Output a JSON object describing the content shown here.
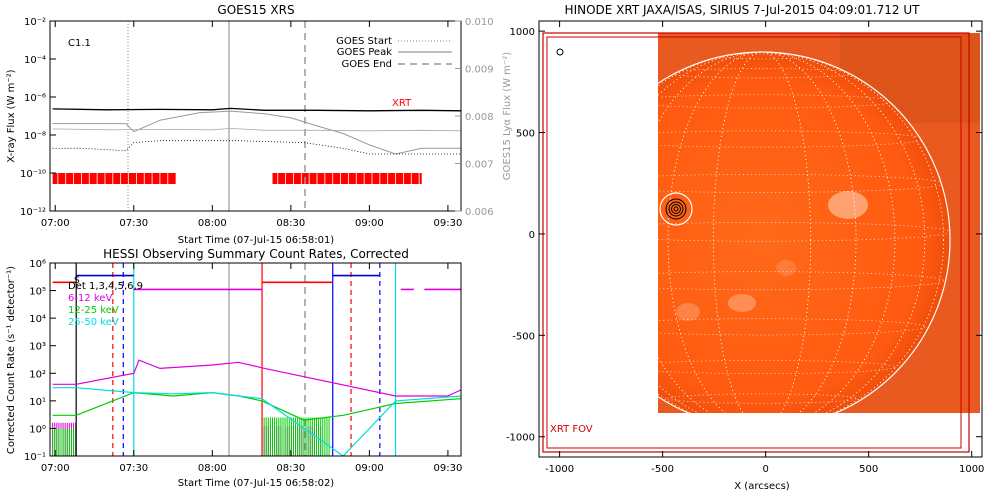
{
  "goes_panel": {
    "title": "GOES15 XRS",
    "class_label": "C1.1",
    "left_axis_label": "X-ray Flux (W m⁻²)",
    "right_axis_label": "GOES15 Lyα Flux (W m⁻²)",
    "xlabel": "Start Time (07-Jul-15 06:58:01)",
    "xrt_tag": "XRT",
    "legend": [
      "GOES Start",
      "GOES Peak",
      "GOES End"
    ],
    "colors": {
      "primary": "#000000",
      "secondary": "#999999",
      "coverage": "#ff0000"
    }
  },
  "hessi_panel": {
    "title": "HESSI Observing Summary Count Rates, Corrected",
    "ylabel": "Corrected Count Rate (s⁻¹ detector⁻¹)",
    "xlabel": "Start Time (07-Jul-15 06:58:02)",
    "marker_letter": "S",
    "legend": [
      {
        "text": "Det 1,3,4,5,6,9",
        "color": "#000000"
      },
      {
        "text": "6-12 keV",
        "color": "#dd00dd"
      },
      {
        "text": "12-25 keV",
        "color": "#00cc00"
      },
      {
        "text": "25-50 keV",
        "color": "#00dddd"
      }
    ]
  },
  "xrt_panel": {
    "title": "HINODE XRT JAXA/ISAS, SIRIUS  7-Jul-2015 04:09:01.712 UT",
    "xlabel": "X (arcsecs)",
    "fov_label": "XRT FOV",
    "colors": {
      "sun": "#ff5a10",
      "limb": "#ffffff",
      "fov": "#cc0000"
    }
  },
  "chart_data": [
    {
      "type": "line",
      "title": "GOES15 XRS",
      "xlabel": "Start Time (07-Jul-15 06:58:01)",
      "ylabel": "X-ray Flux (W m^-2)",
      "y2label": "GOES15 Lyα Flux (W m^-2)",
      "y_scale": "log",
      "ylim": [
        1e-12,
        0.01
      ],
      "y2lim": [
        0.006,
        0.01
      ],
      "x_ticks": [
        "07:00",
        "07:30",
        "08:00",
        "08:30",
        "09:00",
        "09:30"
      ],
      "y_ticks": [
        "10⁻¹²",
        "10⁻¹⁰",
        "10⁻⁸",
        "10⁻⁶",
        "10⁻⁴",
        "10⁻²"
      ],
      "y2_ticks": [
        "0.006",
        "0.007",
        "0.008",
        "0.009",
        "0.010"
      ],
      "markers": [
        {
          "name": "GOES Start",
          "time": "07:28",
          "style": "dotted"
        },
        {
          "name": "GOES Peak",
          "time": "08:07",
          "style": "solid"
        },
        {
          "name": "GOES End",
          "time": "08:36",
          "style": "dashed"
        }
      ],
      "xrt_coverage": [
        [
          "06:59",
          "07:46"
        ],
        [
          "08:23",
          "09:20"
        ]
      ],
      "series": [
        {
          "name": "Lyα",
          "x": [
            "06:59",
            "07:20",
            "07:40",
            "08:00",
            "08:07",
            "08:20",
            "08:40",
            "09:00",
            "09:20",
            "09:35"
          ],
          "values": [
            0.00815,
            0.00813,
            0.00814,
            0.00813,
            0.00816,
            0.00812,
            0.00812,
            0.00811,
            0.00812,
            0.00811
          ]
        },
        {
          "name": "long",
          "x": [
            "06:59",
            "07:27",
            "07:30",
            "07:40",
            "07:55",
            "08:07",
            "08:20",
            "08:30",
            "08:40",
            "08:50",
            "09:00",
            "09:10",
            "09:20",
            "09:35"
          ],
          "values": [
            4e-08,
            4e-08,
            1.5e-08,
            6e-08,
            1.5e-07,
            1.8e-07,
            1.3e-07,
            8e-08,
            3e-08,
            1.2e-08,
            3e-09,
            1e-09,
            2e-09,
            2e-09
          ]
        },
        {
          "name": "short",
          "x": [
            "06:59",
            "07:10",
            "07:27",
            "07:30",
            "07:40",
            "08:10",
            "08:35",
            "08:50",
            "09:00",
            "09:10",
            "09:20",
            "09:35"
          ],
          "values": [
            2e-09,
            2e-09,
            1.5e-09,
            4e-09,
            5e-09,
            5e-09,
            4e-09,
            2e-09,
            1e-09,
            1e-09,
            1e-09,
            1e-09
          ]
        }
      ]
    },
    {
      "type": "line",
      "title": "HESSI Observing Summary Count Rates, Corrected",
      "xlabel": "Start Time (07-Jul-15 06:58:02)",
      "ylabel": "Corrected Count Rate (s^-1 detector^-1)",
      "y_scale": "log",
      "ylim": [
        0.1,
        1000000
      ],
      "x_ticks": [
        "07:00",
        "07:30",
        "08:00",
        "08:30",
        "09:00",
        "09:30"
      ],
      "y_ticks": [
        "10⁻¹",
        "10⁰",
        "10¹",
        "10²",
        "10³",
        "10⁴",
        "10⁵",
        "10⁶"
      ],
      "series": [
        {
          "name": "6-12 keV",
          "x": [
            "06:59",
            "07:08",
            "07:30",
            "07:32",
            "07:40",
            "08:00",
            "08:10",
            "08:20",
            "09:10",
            "09:30",
            "09:35"
          ],
          "values": [
            40,
            40,
            100,
            300,
            150,
            200,
            250,
            150,
            15,
            15,
            25
          ]
        },
        {
          "name": "12-25 keV",
          "x": [
            "06:59",
            "07:08",
            "07:30",
            "07:45",
            "08:00",
            "08:10",
            "08:19",
            "08:35",
            "08:50",
            "09:10",
            "09:35"
          ],
          "values": [
            3,
            3,
            20,
            15,
            20,
            15,
            10,
            2,
            3,
            8,
            12
          ]
        },
        {
          "name": "25-50 keV",
          "x": [
            "06:59",
            "07:08",
            "07:30",
            "07:45",
            "08:00",
            "08:10",
            "08:19",
            "08:50",
            "09:10",
            "09:35"
          ],
          "values": [
            30,
            30,
            20,
            18,
            20,
            15,
            12,
            0.1,
            10,
            15
          ]
        }
      ],
      "attenuator_state": {
        "x": [
          "07:08",
          "07:41",
          "08:19",
          "08:53",
          "09:10",
          "09:35"
        ],
        "level": [
          300000,
          100000,
          200000,
          300000,
          100000,
          100000
        ]
      },
      "night_times": [
        "07:08",
        "07:22",
        "07:26",
        "07:30",
        "08:46",
        "08:53",
        "09:04"
      ]
    },
    {
      "type": "heatmap",
      "title": "HINODE XRT JAXA/ISAS, SIRIUS  7-Jul-2015 04:09:01.712 UT",
      "xlabel": "X (arcsecs)",
      "xlim": [
        -1100,
        1050
      ],
      "ylim": [
        -1100,
        1050
      ],
      "x_ticks": [
        "-1000",
        "-500",
        "0",
        "500",
        "1000"
      ],
      "y_ticks": [
        "-1000",
        "-500",
        "0",
        "500",
        "1000"
      ],
      "limb_radius_arcsec": 944,
      "flare_location": [
        -430,
        160
      ],
      "image_extent": {
        "x": [
          -520,
          1050
        ],
        "y": [
          -880,
          1020
        ]
      },
      "fov_box": {
        "x": [
          -1060,
          1000
        ],
        "y": [
          -1060,
          1020
        ]
      }
    }
  ]
}
